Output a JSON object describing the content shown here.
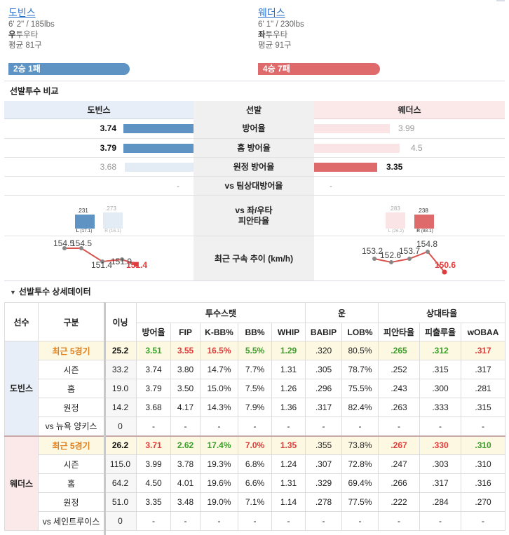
{
  "pitchers": {
    "left": {
      "name": "도빈스",
      "body": "6' 2\" / 185lbs",
      "hand_bold": "우",
      "hand_rest": "투우타",
      "avg_pitches": "평균 81구",
      "record": "2승 1패"
    },
    "right": {
      "name": "웨더스",
      "body": "6' 1\" / 230lbs",
      "hand_bold": "좌",
      "hand_rest": "투우타",
      "avg_pitches": "평균 91구",
      "record": "4승 7패"
    }
  },
  "compare": {
    "title": "선발투수 비교",
    "head": {
      "left": "도빈스",
      "center": "선발",
      "right": "웨더스"
    },
    "rows": [
      {
        "label": "방어율",
        "left": "3.74",
        "right": "3.99"
      },
      {
        "label": "홈 방어율",
        "left": "3.79",
        "right": "4.5"
      },
      {
        "label": "원정 방어율",
        "left": "3.68",
        "right": "3.35"
      },
      {
        "label": "vs 팀상대방어율",
        "left": "-",
        "right": "-"
      }
    ],
    "split_label_1": "vs 좌/우타",
    "split_label_2": "피안타율",
    "split": {
      "left": {
        "L": ".231",
        "R": ".273",
        "L_lab": "L",
        "L_ip": "(17.1)",
        "R_lab": "R",
        "R_ip": "(16.1)"
      },
      "right": {
        "L": ".283",
        "R": ".238",
        "L_lab": "L",
        "L_ip": "(26.2)",
        "R_lab": "R",
        "R_ip": "(88.1)"
      }
    },
    "velo_label": "최근 구속 추이 (km/h)",
    "velo": {
      "left": [
        "154.5",
        "154.5",
        "151.4",
        "151.9",
        "151.4"
      ],
      "right": [
        "153.2",
        "152.6",
        "153.7",
        "154.8",
        "150.6"
      ]
    }
  },
  "detail": {
    "title": "선발투수 상세데이터",
    "caret": "▼",
    "h_player": "선수",
    "h_cat": "구분",
    "h_inn": "이닝",
    "h_group1": "투수스탯",
    "h_group2": "운",
    "h_group3": "상대타율",
    "cols": [
      "방어율",
      "FIP",
      "K-BB%",
      "BB%",
      "WHIP",
      "BABIP",
      "LOB%",
      "피안타율",
      "피출루율",
      "wOBAA"
    ],
    "players": [
      {
        "name": "도빈스",
        "rows": [
          {
            "cat": "최근 5경기",
            "inn": "25.2",
            "v": [
              "3.51",
              "3.55",
              "16.5%",
              "5.5%",
              "1.29",
              ".320",
              "80.5%",
              ".265",
              ".312",
              ".317"
            ]
          },
          {
            "cat": "시즌",
            "inn": "33.2",
            "v": [
              "3.74",
              "3.80",
              "14.7%",
              "7.7%",
              "1.31",
              ".305",
              "78.7%",
              ".252",
              ".315",
              ".317"
            ]
          },
          {
            "cat": "홈",
            "inn": "19.0",
            "v": [
              "3.79",
              "3.50",
              "15.0%",
              "7.5%",
              "1.26",
              ".296",
              "75.5%",
              ".243",
              ".300",
              ".281"
            ]
          },
          {
            "cat": "원정",
            "inn": "14.2",
            "v": [
              "3.68",
              "4.17",
              "14.3%",
              "7.9%",
              "1.36",
              ".317",
              "82.4%",
              ".263",
              ".333",
              ".315"
            ]
          },
          {
            "cat": "vs 뉴욕 양키스",
            "inn": "0",
            "v": [
              "-",
              "-",
              "-",
              "-",
              "-",
              "-",
              "-",
              "-",
              "-",
              "-"
            ]
          }
        ]
      },
      {
        "name": "웨더스",
        "rows": [
          {
            "cat": "최근 5경기",
            "inn": "26.2",
            "v": [
              "3.71",
              "2.62",
              "17.4%",
              "7.0%",
              "1.35",
              ".355",
              "73.8%",
              ".267",
              ".330",
              ".310"
            ]
          },
          {
            "cat": "시즌",
            "inn": "115.0",
            "v": [
              "3.99",
              "3.78",
              "19.3%",
              "6.8%",
              "1.24",
              ".307",
              "72.8%",
              ".247",
              ".303",
              ".310"
            ]
          },
          {
            "cat": "홈",
            "inn": "64.2",
            "v": [
              "4.50",
              "4.01",
              "19.6%",
              "6.6%",
              "1.31",
              ".329",
              "69.4%",
              ".266",
              ".317",
              ".316"
            ]
          },
          {
            "cat": "원정",
            "inn": "51.0",
            "v": [
              "3.35",
              "3.48",
              "19.0%",
              "7.1%",
              "1.14",
              ".278",
              "77.5%",
              ".222",
              ".284",
              ".270"
            ]
          },
          {
            "cat": "vs 세인트루이스",
            "inn": "0",
            "v": [
              "-",
              "-",
              "-",
              "-",
              "-",
              "-",
              "-",
              "-",
              "-",
              "-"
            ]
          }
        ]
      }
    ]
  },
  "colors": {
    "blue": "#5f93c4",
    "red": "#de6a6c",
    "green": "#3aa02a",
    "hot": "#e23b3b",
    "orange": "#e07f1b"
  }
}
